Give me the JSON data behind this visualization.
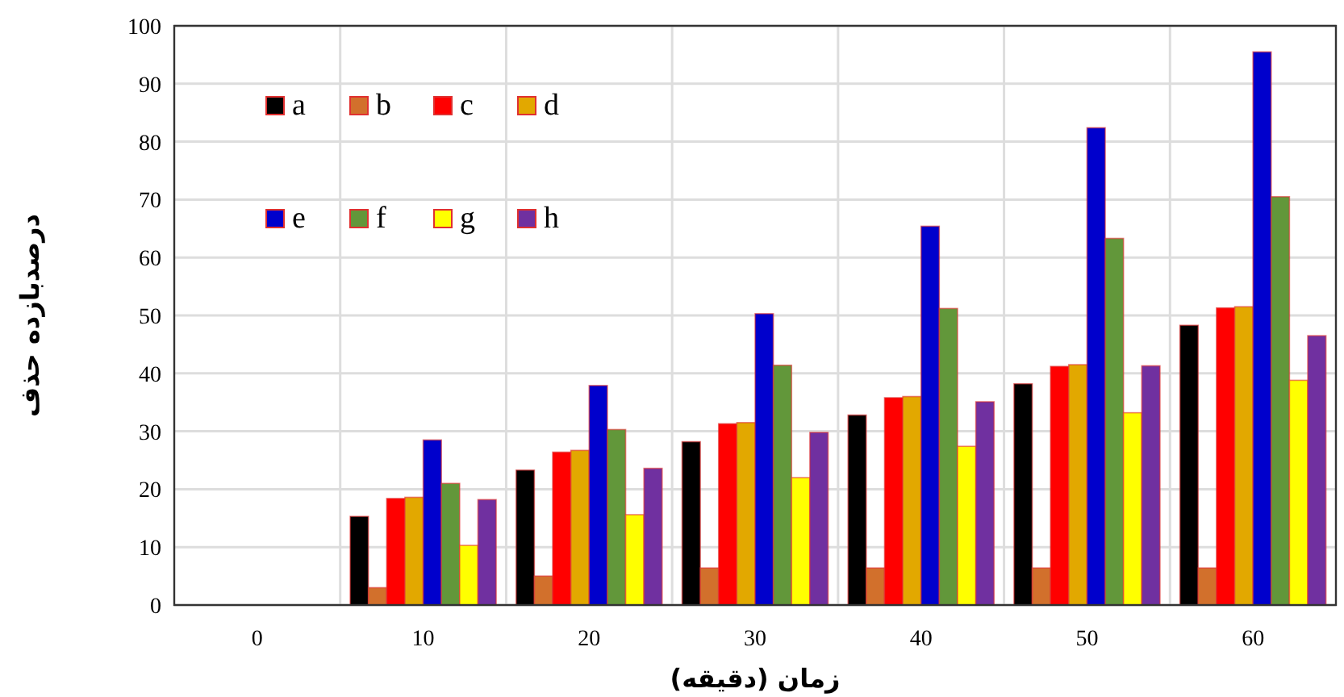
{
  "chart_data": {
    "type": "bar",
    "xlabel": "زمان (دقیقه)",
    "ylabel": "درصدبازده حذف",
    "categories": [
      "0",
      "10",
      "20",
      "30",
      "40",
      "50",
      "60"
    ],
    "series": [
      {
        "name": "a",
        "color": "#000000",
        "values": [
          0,
          15.3,
          23.3,
          28.2,
          32.8,
          38.2,
          48.3
        ]
      },
      {
        "name": "b",
        "color": "#d2702c",
        "values": [
          0,
          3,
          5,
          6.4,
          6.4,
          6.4,
          6.4
        ]
      },
      {
        "name": "c",
        "color": "#ff0000",
        "values": [
          0,
          18.4,
          26.4,
          31.3,
          35.8,
          41.2,
          51.3
        ]
      },
      {
        "name": "d",
        "color": "#e2a800",
        "values": [
          0,
          18.6,
          26.7,
          31.5,
          36,
          41.5,
          51.5
        ]
      },
      {
        "name": "e",
        "color": "#0000cc",
        "values": [
          0,
          28.5,
          37.9,
          50.3,
          65.4,
          82.4,
          95.5
        ]
      },
      {
        "name": "f",
        "color": "#62973a",
        "values": [
          0,
          21,
          30.3,
          41.4,
          51.2,
          63.3,
          70.5
        ]
      },
      {
        "name": "g",
        "color": "#ffff00",
        "values": [
          0,
          10.3,
          15.6,
          22,
          27.4,
          33.2,
          38.8
        ]
      },
      {
        "name": "h",
        "color": "#7030a0",
        "values": [
          0,
          18.2,
          23.6,
          29.8,
          35.1,
          41.3,
          46.5
        ]
      }
    ],
    "ylim": [
      0,
      100
    ],
    "yticks": [
      0,
      10,
      20,
      30,
      40,
      50,
      60,
      70,
      80,
      90,
      100
    ],
    "grid": true,
    "legend": "top left"
  }
}
